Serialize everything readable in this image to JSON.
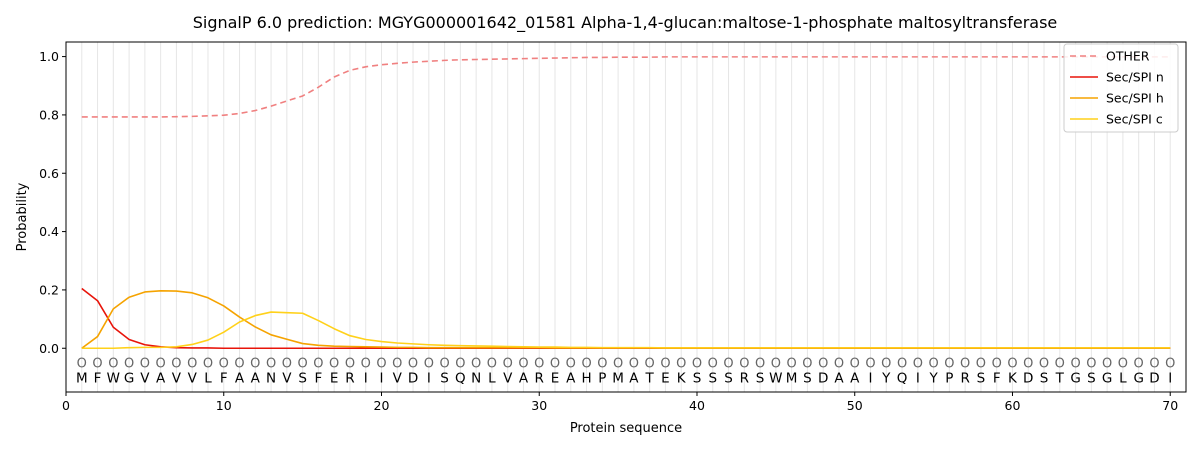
{
  "chart_data": {
    "type": "line",
    "title": "SignalP 6.0 prediction: MGYG000001642_01581 Alpha-1,4-glucan:maltose-1-phosphate maltosyltransferase",
    "xlabel": "Protein sequence",
    "ylabel": "Probability",
    "xlim": [
      0,
      71
    ],
    "ylim": [
      -0.15,
      1.05
    ],
    "x_ticks": [
      0,
      10,
      20,
      30,
      40,
      50,
      60,
      70
    ],
    "y_ticks": [
      0.0,
      0.2,
      0.4,
      0.6,
      0.8,
      1.0
    ],
    "x_tick_labels": [
      "0",
      "10",
      "20",
      "30",
      "40",
      "50",
      "60",
      "70"
    ],
    "y_tick_labels": [
      "0.0",
      "0.2",
      "0.4",
      "0.6",
      "0.8",
      "1.0"
    ],
    "grid": "vertical lines at each residue",
    "legend_position": "top-right",
    "sequence": [
      "M",
      "F",
      "W",
      "G",
      "V",
      "A",
      "V",
      "V",
      "L",
      "F",
      "A",
      "A",
      "N",
      "V",
      "S",
      "F",
      "E",
      "R",
      "I",
      "I",
      "V",
      "D",
      "I",
      "S",
      "Q",
      "N",
      "L",
      "V",
      "A",
      "R",
      "E",
      "A",
      "H",
      "P",
      "M",
      "A",
      "T",
      "E",
      "K",
      "S",
      "S",
      "S",
      "R",
      "S",
      "W",
      "M",
      "S",
      "D",
      "A",
      "A",
      "I",
      "Y",
      "Q",
      "I",
      "Y",
      "P",
      "R",
      "S",
      "F",
      "K",
      "D",
      "S",
      "T",
      "G",
      "S",
      "G",
      "L",
      "G",
      "D",
      "I"
    ],
    "prediction": [
      "O",
      "O",
      "O",
      "O",
      "O",
      "O",
      "O",
      "O",
      "O",
      "O",
      "O",
      "O",
      "O",
      "O",
      "O",
      "O",
      "O",
      "O",
      "O",
      "O",
      "O",
      "O",
      "O",
      "O",
      "O",
      "O",
      "O",
      "O",
      "O",
      "O",
      "O",
      "O",
      "O",
      "O",
      "O",
      "O",
      "O",
      "O",
      "O",
      "O",
      "O",
      "O",
      "O",
      "O",
      "O",
      "O",
      "O",
      "O",
      "O",
      "O",
      "O",
      "O",
      "O",
      "O",
      "O",
      "O",
      "O",
      "O",
      "O",
      "O",
      "O",
      "O",
      "O",
      "O",
      "O",
      "O",
      "O",
      "O",
      "O",
      "O"
    ],
    "series": [
      {
        "name": "OTHER",
        "color": "#f08080",
        "dash": "dashed",
        "values": [
          0.793,
          0.793,
          0.793,
          0.793,
          0.793,
          0.793,
          0.794,
          0.795,
          0.797,
          0.799,
          0.805,
          0.815,
          0.83,
          0.848,
          0.865,
          0.895,
          0.93,
          0.953,
          0.965,
          0.972,
          0.977,
          0.981,
          0.984,
          0.987,
          0.989,
          0.99,
          0.991,
          0.992,
          0.993,
          0.994,
          0.995,
          0.996,
          0.997,
          0.997,
          0.998,
          0.998,
          0.998,
          0.999,
          0.999,
          0.999,
          0.999,
          0.999,
          0.999,
          0.999,
          0.999,
          0.999,
          0.999,
          0.999,
          0.999,
          0.999,
          0.999,
          0.999,
          0.999,
          0.999,
          0.999,
          0.999,
          0.999,
          0.999,
          0.999,
          0.999,
          0.999,
          0.999,
          0.999,
          0.999,
          0.999,
          0.999,
          0.999,
          0.999,
          0.999,
          0.999
        ]
      },
      {
        "name": "Sec/SPI n",
        "color": "#e8140a",
        "dash": "solid",
        "values": [
          0.205,
          0.163,
          0.072,
          0.03,
          0.012,
          0.005,
          0.002,
          0.001,
          0.001,
          0,
          0,
          0,
          0,
          0,
          0,
          0,
          0,
          0,
          0,
          0,
          0,
          0,
          0,
          0,
          0,
          0,
          0,
          0,
          0,
          0,
          0,
          0,
          0,
          0,
          0,
          0,
          0,
          0,
          0,
          0,
          0,
          0,
          0,
          0,
          0,
          0,
          0,
          0,
          0,
          0,
          0,
          0,
          0,
          0,
          0,
          0,
          0,
          0,
          0,
          0,
          0,
          0,
          0,
          0,
          0,
          0,
          0,
          0,
          0,
          0
        ]
      },
      {
        "name": "Sec/SPI h",
        "color": "#f5a300",
        "dash": "solid",
        "values": [
          0.0,
          0.04,
          0.135,
          0.175,
          0.193,
          0.197,
          0.196,
          0.19,
          0.173,
          0.145,
          0.107,
          0.073,
          0.046,
          0.031,
          0.016,
          0.01,
          0.007,
          0.006,
          0.005,
          0.004,
          0.003,
          0.003,
          0.002,
          0.002,
          0.002,
          0.002,
          0.002,
          0.002,
          0.002,
          0.002,
          0.001,
          0.001,
          0.001,
          0.001,
          0.001,
          0.001,
          0.001,
          0.001,
          0.001,
          0.001,
          0.001,
          0.001,
          0.001,
          0.001,
          0.001,
          0.001,
          0.001,
          0.001,
          0.001,
          0.001,
          0.001,
          0.001,
          0.001,
          0.001,
          0.001,
          0.001,
          0.001,
          0.001,
          0.001,
          0.001,
          0.001,
          0.001,
          0.001,
          0.001,
          0.001,
          0.001,
          0.001,
          0.001,
          0.001,
          0.001
        ]
      },
      {
        "name": "Sec/SPI c",
        "color": "#ffd11a",
        "dash": "solid",
        "values": [
          0.0,
          0.0,
          0.0,
          0.002,
          0.003,
          0.003,
          0.005,
          0.013,
          0.028,
          0.055,
          0.09,
          0.112,
          0.124,
          0.122,
          0.12,
          0.095,
          0.067,
          0.043,
          0.03,
          0.023,
          0.018,
          0.015,
          0.012,
          0.01,
          0.009,
          0.008,
          0.007,
          0.006,
          0.005,
          0.004,
          0.004,
          0.003,
          0.003,
          0.002,
          0.002,
          0.002,
          0.002,
          0.001,
          0.001,
          0.001,
          0.001,
          0.001,
          0.001,
          0.001,
          0.001,
          0.001,
          0.001,
          0.001,
          0.001,
          0.001,
          0.001,
          0.001,
          0.001,
          0.001,
          0.001,
          0.001,
          0.001,
          0.001,
          0.001,
          0.001,
          0.001,
          0.001,
          0.001,
          0.001,
          0.001,
          0.001,
          0.001,
          0.001,
          0.001,
          0.001
        ]
      }
    ]
  }
}
